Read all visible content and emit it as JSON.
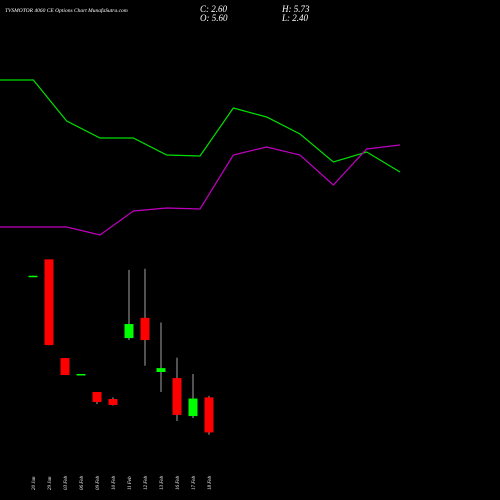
{
  "chart_data": {
    "type": "candlestick",
    "title": "TVSMOTOR 4060 CE Options Chart MunafaSutra.com",
    "stats": [
      "C: 2.60",
      "H: 5.73",
      "O: 5.60",
      "L: 2.40"
    ],
    "categories": [
      "20 Jan",
      "29 Jan",
      "03 Feb",
      "06 Feb",
      "09 Feb",
      "10 Feb",
      "11 Feb",
      "12 Feb",
      "13 Feb",
      "16 Feb",
      "17 Feb",
      "18 Feb"
    ],
    "open": [
      15.9,
      17.4,
      8.96,
      7.5,
      6.06,
      5.46,
      10.67,
      12.4,
      7.77,
      7.25,
      4.0,
      5.6
    ],
    "high": [
      16.0,
      17.4,
      8.96,
      7.6,
      6.06,
      5.6,
      16.5,
      16.6,
      12.0,
      9.0,
      7.6,
      5.73
    ],
    "low": [
      15.9,
      10.07,
      7.51,
      7.5,
      5.03,
      4.9,
      10.5,
      8.3,
      6.06,
      3.58,
      3.83,
      2.4
    ],
    "close": [
      16.0,
      10.07,
      7.51,
      7.6,
      5.2,
      4.95,
      11.87,
      10.5,
      8.1,
      4.1,
      5.5,
      2.6
    ],
    "up_color": "#00ff00",
    "down_color": "#ff0000",
    "ylim": [
      1.1,
      18.2
    ],
    "x": [
      0,
      1,
      2,
      3,
      4,
      5,
      6,
      7,
      8,
      9,
      10,
      11,
      12
    ],
    "xlim": [
      0,
      12
    ],
    "y2lim": [
      0,
      200
    ],
    "series": [
      {
        "color": "#00e000",
        "axis": "y2",
        "values": [
          170,
          170,
          129,
          112,
          112,
          95,
          94,
          142,
          133,
          116,
          88,
          98,
          78
        ]
      },
      {
        "color": "#c000c0",
        "axis": "y2",
        "values": [
          23,
          23,
          23,
          15,
          39,
          42,
          41,
          95,
          103,
          95,
          65,
          101,
          105
        ]
      }
    ]
  }
}
